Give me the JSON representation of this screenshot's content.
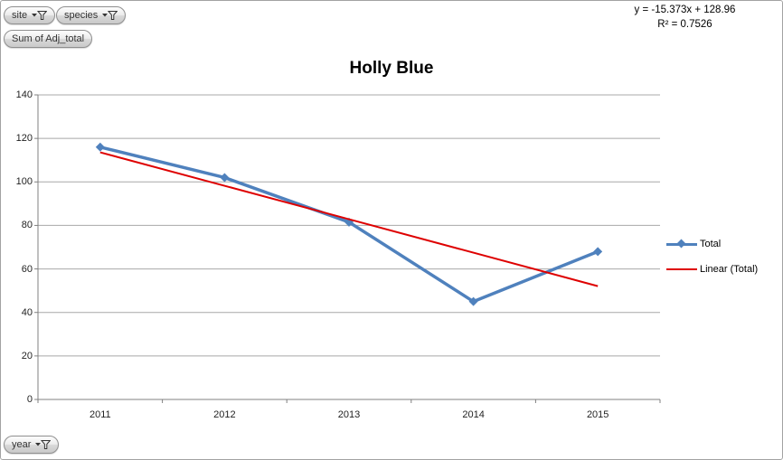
{
  "pivot_buttons": {
    "site_label": "site",
    "species_label": "species",
    "value_label": "Sum of Adj_total",
    "axis_label": "year"
  },
  "equation": {
    "line1": "y = -15.373x + 128.96",
    "line2": "R² = 0.7526"
  },
  "chart_data": {
    "type": "line",
    "title": "Holly Blue",
    "categories": [
      "2011",
      "2012",
      "2013",
      "2014",
      "2015"
    ],
    "series": [
      {
        "name": "Total",
        "values": [
          116,
          102,
          81.5,
          45,
          68
        ],
        "color": "#4F81BD",
        "marker": "diamond"
      }
    ],
    "trendline": {
      "name": "Linear (Total)",
      "slope": -15.373,
      "intercept": 128.96,
      "r_squared": 0.7526,
      "color": "#DE0000"
    },
    "xlabel": "",
    "ylabel": "",
    "ylim": [
      0,
      140
    ],
    "ytick_step": 20,
    "grid": true,
    "legend_position": "right",
    "colors": {
      "gridline": "#A8A8A8",
      "axis": "#808080",
      "label": "#1f1f1f"
    }
  }
}
